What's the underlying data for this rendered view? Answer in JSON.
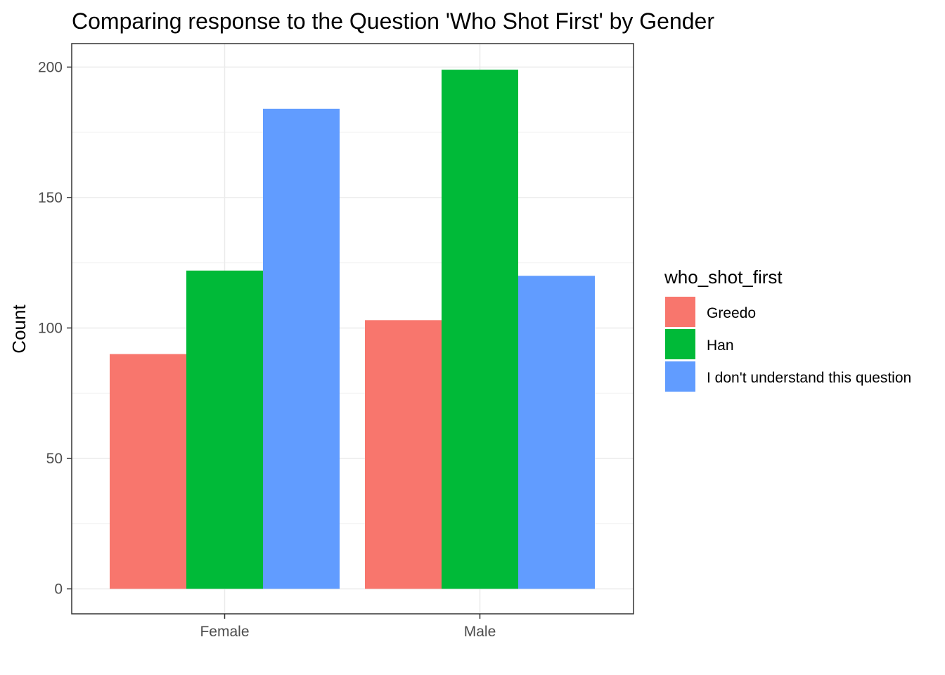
{
  "chart_data": {
    "type": "bar",
    "title": "Comparing response to the Question 'Who Shot First' by Gender",
    "xlabel": "",
    "ylabel": "Count",
    "categories": [
      "Female",
      "Male"
    ],
    "series": [
      {
        "name": "Greedo",
        "values": [
          90,
          103
        ],
        "color": "#F8766D"
      },
      {
        "name": "Han",
        "values": [
          122,
          199
        ],
        "color": "#00BA38"
      },
      {
        "name": "I don't understand this question",
        "values": [
          184,
          120
        ],
        "color": "#619CFF"
      }
    ],
    "ylim": [
      0,
      210
    ],
    "yticks": [
      0,
      50,
      100,
      150,
      200
    ],
    "grid": true,
    "legend": {
      "title": "who_shot_first",
      "position": "right"
    }
  }
}
